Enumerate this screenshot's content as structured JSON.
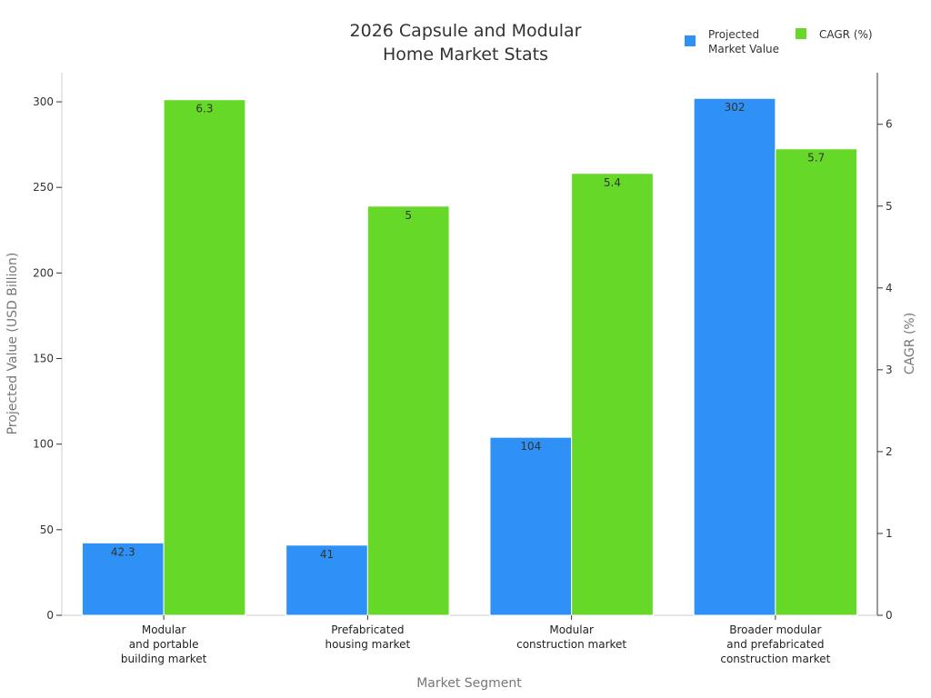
{
  "chart_data": {
    "type": "bar",
    "title": [
      "2026 Capsule and Modular",
      "Home Market Stats"
    ],
    "xlabel": "Market Segment",
    "ylabel": "Projected Value (USD Billion)",
    "ylabel_right": "CAGR (%)",
    "categories": [
      [
        "Modular",
        "and portable",
        "building market"
      ],
      [
        "Prefabricated",
        "housing market"
      ],
      [
        "Modular",
        "construction market"
      ],
      [
        "Broader modular",
        "and prefabricated",
        "construction market"
      ]
    ],
    "series": [
      {
        "name": [
          "Projected",
          "Market Value"
        ],
        "axis": "left",
        "color": "#2f91f5",
        "values": [
          42.3,
          41,
          104,
          302
        ]
      },
      {
        "name": [
          "CAGR (%)"
        ],
        "axis": "right",
        "color": "#66d928",
        "values": [
          6.3,
          5,
          5.4,
          5.7
        ]
      }
    ],
    "ylim": [
      0,
      317
    ],
    "yticks": [
      0,
      50,
      100,
      150,
      200,
      250,
      300
    ],
    "ylim_right": [
      0,
      6.63
    ],
    "yticks_right": [
      0,
      1,
      2,
      3,
      4,
      5,
      6
    ],
    "legend": "top-right",
    "grid": false
  }
}
